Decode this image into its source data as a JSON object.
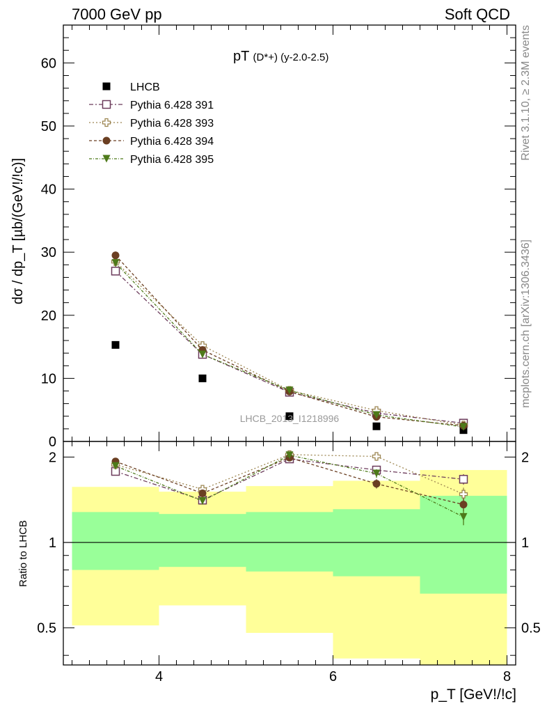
{
  "header": {
    "left": "7000 GeV pp",
    "right": "Soft QCD"
  },
  "side_labels": {
    "rivet": "Rivet 3.1.10, ≥ 2.3M events",
    "mcplots": "mcplots.cern.ch [arXiv:1306.3436]"
  },
  "watermark": "LHCB_2013_I1218996",
  "colors": {
    "data": "#000000",
    "p391": "#6b3a5a",
    "p393": "#9c8550",
    "p394": "#6b3f22",
    "p395": "#4e7a1a",
    "band_inner": "#99ff99",
    "band_outer": "#ffff99"
  },
  "chart_data": [
    {
      "type": "scatter",
      "title": "pT(D*+) (y-2.0-2.5)",
      "title_main": "pT",
      "title_sub": "(D*+) (y-2.0-2.5)",
      "ylabel": "dσ / dp_T [µb/(GeV!/!c)]",
      "xlim": [
        2.9,
        8.1
      ],
      "ylim": [
        0,
        66
      ],
      "yticks": [
        0,
        10,
        20,
        30,
        40,
        50,
        60
      ],
      "ytick_labels": [
        "0",
        "10",
        "20",
        "30",
        "40",
        "50",
        "60"
      ],
      "legend_position": "top-left",
      "x": [
        3.5,
        4.5,
        5.5,
        6.5,
        7.5
      ],
      "series": [
        {
          "name": "LHCB",
          "key": "data",
          "marker": "square-filled",
          "values": [
            15.3,
            10.0,
            4.0,
            2.4,
            1.8
          ],
          "errors": [
            0,
            0,
            0,
            0,
            0
          ]
        },
        {
          "name": "Pythia 6.428 391",
          "key": "p391",
          "marker": "square-open",
          "dash": "6,3,2,3",
          "values": [
            27.0,
            13.8,
            7.8,
            4.5,
            2.9
          ],
          "errors": [
            0.6,
            0.4,
            0.2,
            0.2,
            0.15
          ]
        },
        {
          "name": "Pythia 6.428 393",
          "key": "p393",
          "marker": "cross-open",
          "dash": "2,3",
          "values": [
            28.5,
            15.2,
            8.1,
            4.9,
            2.6
          ],
          "errors": [
            0.6,
            0.4,
            0.2,
            0.25,
            0.2
          ]
        },
        {
          "name": "Pythia 6.428 394",
          "key": "p394",
          "marker": "circle-filled",
          "dash": "4,3",
          "values": [
            29.5,
            14.5,
            7.9,
            3.9,
            2.5
          ],
          "errors": [
            0.6,
            0.4,
            0.2,
            0.2,
            0.15
          ]
        },
        {
          "name": "Pythia 6.428 395",
          "key": "p395",
          "marker": "triangle-down-filled",
          "dash": "4,2,1,2",
          "values": [
            28.3,
            13.8,
            8.1,
            4.2,
            2.3
          ],
          "errors": [
            0.6,
            0.4,
            0.2,
            0.2,
            0.15
          ]
        }
      ]
    },
    {
      "type": "scatter",
      "ylabel": "Ratio to LHCB",
      "xlabel": "p_T [GeV!/!c]",
      "xlim": [
        2.9,
        8.1
      ],
      "xticks": [
        4,
        6,
        8
      ],
      "xtick_labels": [
        "4",
        "6",
        "8"
      ],
      "ylim": [
        0.37,
        2.27
      ],
      "yticks": [
        0.5,
        1,
        2
      ],
      "ytick_labels": [
        "0.5",
        "1",
        "2"
      ],
      "log_y": true,
      "reference_line": 1,
      "bands": [
        {
          "x0": 3,
          "x1": 4,
          "outer": [
            0.51,
            1.57
          ],
          "inner": [
            0.8,
            1.28
          ]
        },
        {
          "x0": 4,
          "x1": 5,
          "outer": [
            0.6,
            1.51
          ],
          "inner": [
            0.82,
            1.26
          ]
        },
        {
          "x0": 5,
          "x1": 6,
          "outer": [
            0.48,
            1.58
          ],
          "inner": [
            0.79,
            1.28
          ]
        },
        {
          "x0": 6,
          "x1": 7,
          "outer": [
            0.39,
            1.65
          ],
          "inner": [
            0.76,
            1.31
          ]
        },
        {
          "x0": 7,
          "x1": 8,
          "outer": [
            0.37,
            1.8
          ],
          "inner": [
            0.66,
            1.46
          ]
        }
      ],
      "x": [
        3.5,
        4.5,
        5.5,
        6.5,
        7.5
      ],
      "series": [
        {
          "name": "Pythia 6.428 391",
          "key": "p391",
          "marker": "square-open",
          "dash": "6,3,2,3",
          "values": [
            1.78,
            1.41,
            1.97,
            1.8,
            1.67
          ],
          "errors": [
            0.03,
            0.03,
            0.04,
            0.05,
            0.07
          ]
        },
        {
          "name": "Pythia 6.428 393",
          "key": "p393",
          "marker": "cross-open",
          "dash": "2,3",
          "values": [
            1.88,
            1.54,
            2.04,
            2.01,
            1.48
          ],
          "errors": [
            0.03,
            0.03,
            0.05,
            0.07,
            0.08
          ]
        },
        {
          "name": "Pythia 6.428 394",
          "key": "p394",
          "marker": "circle-filled",
          "dash": "4,3",
          "values": [
            1.93,
            1.49,
            1.99,
            1.61,
            1.36
          ],
          "errors": [
            0.03,
            0.03,
            0.05,
            0.06,
            0.07
          ]
        },
        {
          "name": "Pythia 6.428 395",
          "key": "p395",
          "marker": "triangle-down-filled",
          "dash": "4,2,1,2",
          "values": [
            1.86,
            1.4,
            2.03,
            1.75,
            1.23
          ],
          "errors": [
            0.03,
            0.04,
            0.05,
            0.06,
            0.08
          ]
        }
      ]
    }
  ]
}
